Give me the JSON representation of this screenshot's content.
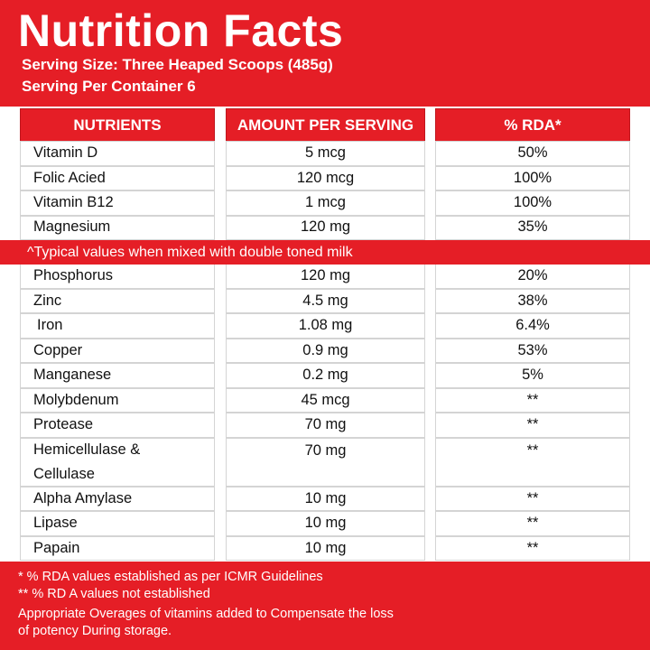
{
  "header": {
    "title": "Nutrition Facts",
    "serving_size": "Serving Size: Three Heaped Scoops (485g)",
    "servings": "Serving Per Container 6"
  },
  "table": {
    "headers": [
      "NUTRIENTS",
      "AMOUNT PER SERVING",
      "% RDA*"
    ],
    "rows_top": [
      {
        "name": "Vitamin D",
        "amount": "5 mcg",
        "rda": "50%"
      },
      {
        "name": "Folic Acied",
        "amount": "120 mcg",
        "rda": "100%"
      },
      {
        "name": "Vitamin B12",
        "amount": "1 mcg",
        "rda": "100%"
      },
      {
        "name": "Magnesium",
        "amount": "120 mg",
        "rda": "35%"
      }
    ],
    "banner": "^Typical values when mixed with double toned milk",
    "rows_bottom": [
      {
        "name": "Phosphorus",
        "amount": "120 mg",
        "rda": "20%"
      },
      {
        "name": "Zinc",
        "amount": "4.5 mg",
        "rda": "38%"
      },
      {
        "name": "Iron",
        "amount": "1.08 mg",
        "rda": "6.4%"
      },
      {
        "name": "Copper",
        "amount": "0.9 mg",
        "rda": "53%"
      },
      {
        "name": "Manganese",
        "amount": "0.2 mg",
        "rda": "5%"
      },
      {
        "name": "Molybdenum",
        "amount": "45 mcg",
        "rda": "**"
      },
      {
        "name": "Protease",
        "amount": "70 mg",
        "rda": "**"
      },
      {
        "name": "Hemicellulase &",
        "name2": "Cellulase",
        "amount": "70 mg",
        "rda": "**"
      },
      {
        "name": "Alpha Amylase",
        "amount": "10 mg",
        "rda": "**"
      },
      {
        "name": "Lipase",
        "amount": "10 mg",
        "rda": "**"
      },
      {
        "name": "Papain",
        "amount": "10 mg",
        "rda": "**"
      }
    ]
  },
  "footer": {
    "note1": "* % RDA values established as per ICMR Guidelines",
    "note2": "** % RD A values not established",
    "note3": "Appropriate Overages of vitamins added to Compensate the loss",
    "note4": "of potency During storage."
  },
  "colors": {
    "brand_red": "#e51e26",
    "text": "#111111",
    "white": "#ffffff"
  }
}
